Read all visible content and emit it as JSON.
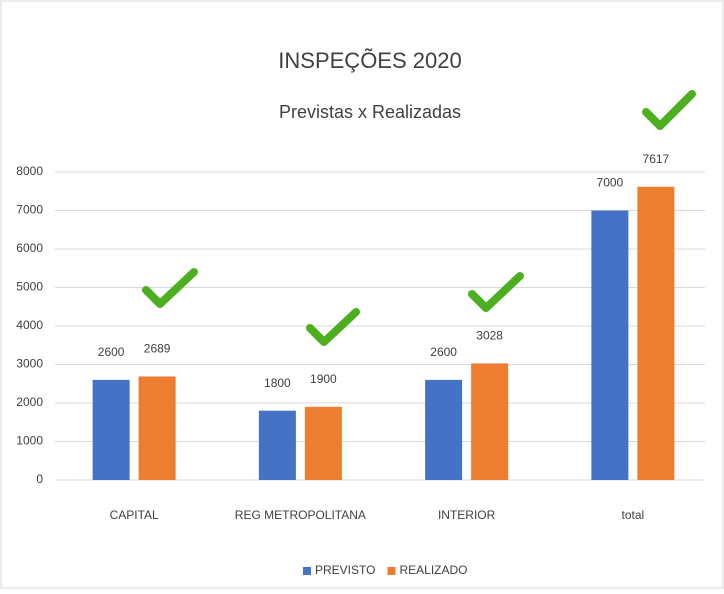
{
  "chart_data": {
    "type": "bar",
    "title": "INSPEÇÕES 2020",
    "subtitle": "Previstas x Realizadas",
    "categories": [
      "CAPITAL",
      "REG METROPOLITANA",
      "INTERIOR",
      "total"
    ],
    "series": [
      {
        "name": "PREVISTO",
        "color": "#4472c4",
        "values": [
          2600,
          1800,
          2600,
          7000
        ]
      },
      {
        "name": "REALIZADO",
        "color": "#ed7d31",
        "values": [
          2689,
          1900,
          3028,
          7617
        ]
      }
    ],
    "ylim": [
      0,
      8000
    ],
    "yticks": [
      0,
      1000,
      2000,
      3000,
      4000,
      5000,
      6000,
      7000,
      8000
    ],
    "grid": true,
    "legend": "bottom"
  }
}
